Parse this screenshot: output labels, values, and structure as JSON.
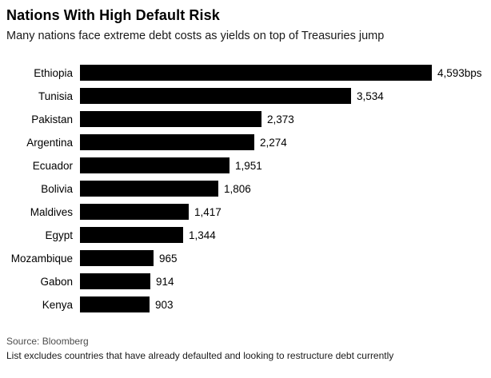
{
  "chart_data": {
    "type": "bar",
    "orientation": "horizontal",
    "title": "Nations With High Default Risk",
    "subtitle": "Many nations face extreme debt costs as yields on top of Treasuries jump",
    "categories": [
      "Ethiopia",
      "Tunisia",
      "Pakistan",
      "Argentina",
      "Ecuador",
      "Bolivia",
      "Maldives",
      "Egypt",
      "Mozambique",
      "Gabon",
      "Kenya"
    ],
    "values": [
      4593,
      3534,
      2373,
      2274,
      1951,
      1806,
      1417,
      1344,
      965,
      914,
      903
    ],
    "value_labels": [
      "4,593bps",
      "3,534",
      "2,373",
      "2,274",
      "1,951",
      "1,806",
      "1,417",
      "1,344",
      "965",
      "914",
      "903"
    ],
    "unit": "bps",
    "bar_color": "#000000",
    "xlim": [
      0,
      4593
    ],
    "grid": false,
    "legend": "none"
  },
  "footer": {
    "source": "Source: Bloomberg",
    "note": "List excludes countries that have already defaulted and looking to restructure debt currently"
  }
}
